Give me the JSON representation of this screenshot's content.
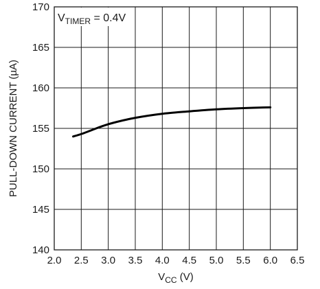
{
  "chart_data": {
    "type": "line",
    "title": "",
    "xlabel": {
      "main": "V",
      "sub": "CC",
      "suffix": " (V)"
    },
    "ylabel": "PULL-DOWN CURRENT (µA)",
    "annotation": {
      "main": "V",
      "sub": "TIMER",
      "suffix": " = 0.4V"
    },
    "xlim": [
      2.0,
      6.5
    ],
    "ylim": [
      140,
      170
    ],
    "x_ticks": [
      2.0,
      2.5,
      3.0,
      3.5,
      4.0,
      4.5,
      5.0,
      5.5,
      6.0,
      6.5
    ],
    "x_tick_labels": [
      "2.0",
      "2.5",
      "3.0",
      "3.5",
      "4.0",
      "4.5",
      "5.0",
      "5.5",
      "6.0",
      "6.5"
    ],
    "y_ticks": [
      140,
      145,
      150,
      155,
      160,
      165,
      170
    ],
    "y_tick_labels": [
      "140",
      "145",
      "150",
      "155",
      "160",
      "165",
      "170"
    ],
    "grid": true,
    "series": [
      {
        "x": [
          2.35,
          2.5,
          2.7,
          2.9,
          3.1,
          3.5,
          4.0,
          4.5,
          5.0,
          5.5,
          6.0
        ],
        "y": [
          154.0,
          154.3,
          154.8,
          155.3,
          155.7,
          156.3,
          156.8,
          157.1,
          157.35,
          157.5,
          157.6
        ]
      }
    ]
  }
}
